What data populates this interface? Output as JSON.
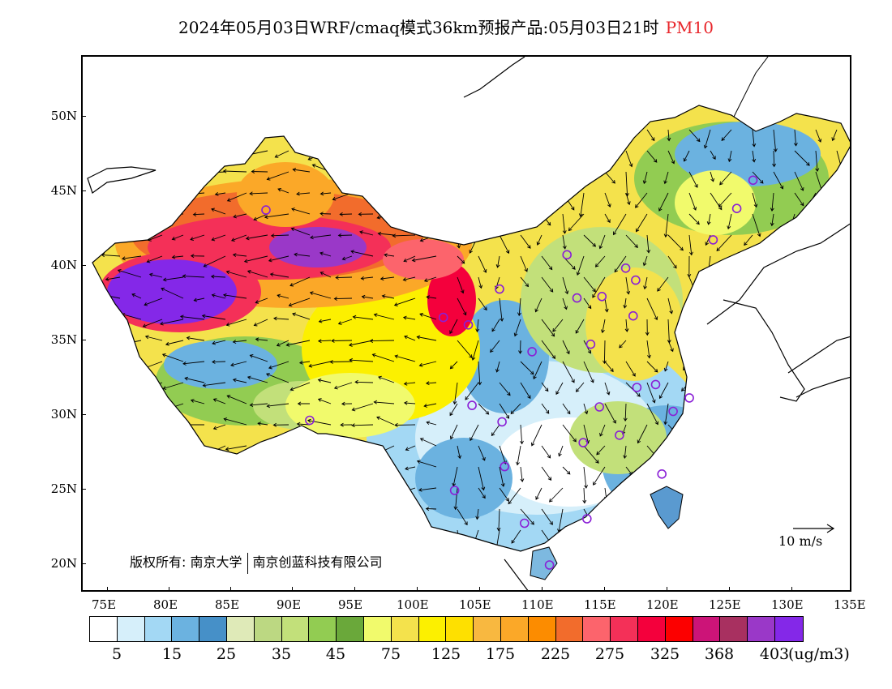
{
  "title": {
    "main": "2024年05月03日WRF/cmaq模式36km预报产品:05月03日21时",
    "pollutant": "PM10",
    "pollutant_color": "#e8262b"
  },
  "axes": {
    "longitude_labels": [
      "75E",
      "80E",
      "85E",
      "90E",
      "95E",
      "100E",
      "105E",
      "110E",
      "115E",
      "120E",
      "125E",
      "130E",
      "135E"
    ],
    "latitude_labels": [
      "50N",
      "45N",
      "40N",
      "35N",
      "30N",
      "25N",
      "20N"
    ]
  },
  "copyright": {
    "prefix": "版权所有:",
    "org1": "南京大学",
    "org2": "南京创蓝科技有限公司"
  },
  "wind_reference": {
    "label": "10 m/s"
  },
  "colorbar": {
    "colors": [
      "#ffffff",
      "#d6effa",
      "#a3d8f4",
      "#6bb2e0",
      "#4690c8",
      "#dfeab8",
      "#bcd882",
      "#c2e07a",
      "#92cc52",
      "#6aa83a",
      "#f1fa6c",
      "#f4e24c",
      "#fcf000",
      "#fee000",
      "#f8b840",
      "#fba828",
      "#fc8c00",
      "#f26c2c",
      "#fc646c",
      "#f43058",
      "#f4003c",
      "#fc0000",
      "#cc1478",
      "#a83060",
      "#9a38c8",
      "#8428e8"
    ],
    "labels": [
      "5",
      "15",
      "25",
      "35",
      "45",
      "75",
      "125",
      "175",
      "225",
      "275",
      "325",
      "368",
      "403"
    ],
    "unit": "(ug/m3)"
  },
  "stations": [
    [
      87.6,
      43.8
    ],
    [
      101.8,
      36.6
    ],
    [
      103.8,
      36.1
    ],
    [
      106.3,
      38.5
    ],
    [
      111.7,
      40.8
    ],
    [
      112.5,
      37.9
    ],
    [
      114.5,
      38.0
    ],
    [
      116.4,
      39.9
    ],
    [
      117.2,
      39.1
    ],
    [
      117.0,
      36.7
    ],
    [
      113.6,
      34.8
    ],
    [
      108.9,
      34.3
    ],
    [
      126.6,
      45.8
    ],
    [
      125.3,
      43.9
    ],
    [
      123.4,
      41.8
    ],
    [
      91.1,
      29.7
    ],
    [
      104.1,
      30.7
    ],
    [
      106.5,
      29.6
    ],
    [
      114.3,
      30.6
    ],
    [
      117.3,
      31.9
    ],
    [
      118.8,
      32.1
    ],
    [
      120.2,
      30.3
    ],
    [
      121.5,
      31.2
    ],
    [
      113.0,
      28.2
    ],
    [
      115.9,
      28.7
    ],
    [
      119.3,
      26.1
    ],
    [
      106.7,
      26.6
    ],
    [
      102.7,
      25.0
    ],
    [
      108.3,
      22.8
    ],
    [
      113.3,
      23.1
    ],
    [
      110.3,
      20.0
    ]
  ]
}
